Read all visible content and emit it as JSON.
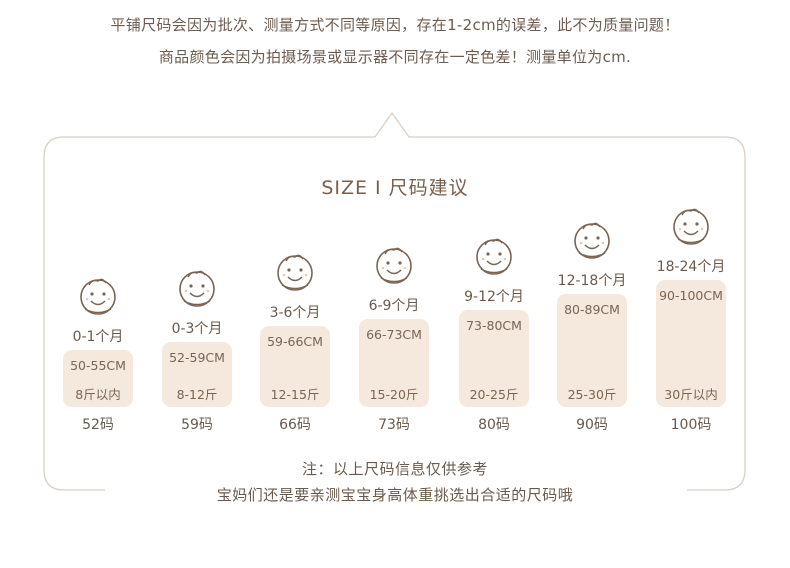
{
  "notes": {
    "line1": "平铺尺码会因为批次、测量方式不同等原因，存在1-2cm的误差，此不为质量问题！",
    "line2": "商品颜色会因为拍摄场景或显示器不同存在一定色差！测量单位为cm."
  },
  "title": "SIZE  I  尺码建议",
  "sizes": [
    {
      "age": "0-1个月",
      "cm": "50-55CM",
      "weight": "8斤以内",
      "code": "52码"
    },
    {
      "age": "0-3个月",
      "cm": "52-59CM",
      "weight": "8-12斤",
      "code": "59码"
    },
    {
      "age": "3-6个月",
      "cm": "59-66CM",
      "weight": "12-15斤",
      "code": "66码"
    },
    {
      "age": "6-9个月",
      "cm": "66-73CM",
      "weight": "15-20斤",
      "code": "73码"
    },
    {
      "age": "9-12个月",
      "cm": "73-80CM",
      "weight": "20-25斤",
      "code": "80码"
    },
    {
      "age": "12-18个月",
      "cm": "80-89CM",
      "weight": "25-30斤",
      "code": "90码"
    },
    {
      "age": "18-24个月",
      "cm": "90-100CM",
      "weight": "30斤以内",
      "code": "100码"
    }
  ],
  "footer": {
    "line1": "注：以上尺码信息仅供参考",
    "line2": "宝妈们还是要亲测宝宝身高体重挑选出合适的尺码哦"
  },
  "colors": {
    "text": "#6b5a4c",
    "box": "#f5e8dc",
    "frame": "#d8cfc6"
  }
}
